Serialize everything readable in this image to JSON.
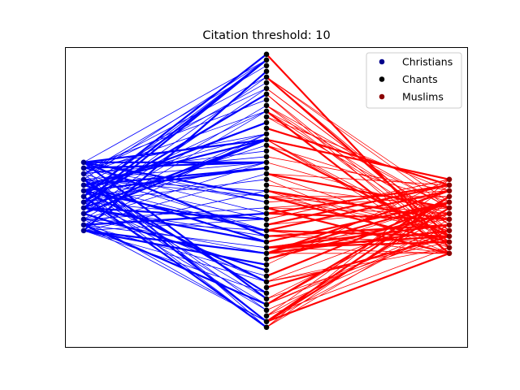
{
  "chart_data": {
    "type": "scatter",
    "title": "Citation threshold: 10",
    "xlabel": "",
    "ylabel": "",
    "grid": false,
    "axes_ticks": false,
    "legend": {
      "placement": "top-right",
      "entries": [
        {
          "name": "Christians",
          "color": "#00008b"
        },
        {
          "name": "Chants",
          "color": "#000000"
        },
        {
          "name": "Muslims",
          "color": "#8b0000"
        }
      ]
    },
    "edge_colors": {
      "christians": "#0000ff",
      "muslims": "#ff0000"
    },
    "groups": {
      "christians": {
        "x": 0,
        "y": [
          -6,
          -5,
          -4,
          -3,
          -2,
          -1,
          0,
          1,
          2,
          3,
          4,
          5,
          6
        ]
      },
      "chants": {
        "x": 1,
        "y": [
          -23,
          -22,
          -21,
          -20,
          -19,
          -18,
          -17,
          -16,
          -15,
          -14,
          -13,
          -12,
          -11,
          -10,
          -9,
          -8,
          -7,
          -6,
          -5,
          -4,
          -3,
          -2,
          -1,
          0,
          1,
          2,
          3,
          4,
          5,
          6,
          7,
          8,
          9,
          10,
          11,
          12,
          13,
          14,
          15,
          16,
          17,
          18,
          19,
          20,
          21,
          22,
          23,
          24,
          25
        ]
      },
      "muslims": {
        "x": 2,
        "y": [
          -10,
          -9,
          -8,
          -7,
          -6,
          -5,
          -4,
          -3,
          -2,
          -1,
          0,
          1,
          2,
          3
        ]
      }
    }
  }
}
